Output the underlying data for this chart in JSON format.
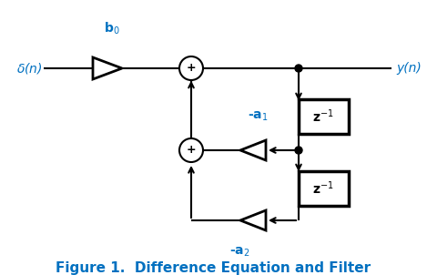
{
  "title": "Figure 1.  Difference Equation and Filter",
  "title_color": "#0070C0",
  "title_fontsize": 11,
  "bg_color": "#ffffff",
  "line_color": "#000000",
  "box_color": "#000000",
  "label_color": "#0070C0",
  "figsize": [
    4.69,
    3.02
  ],
  "dpi": 100
}
